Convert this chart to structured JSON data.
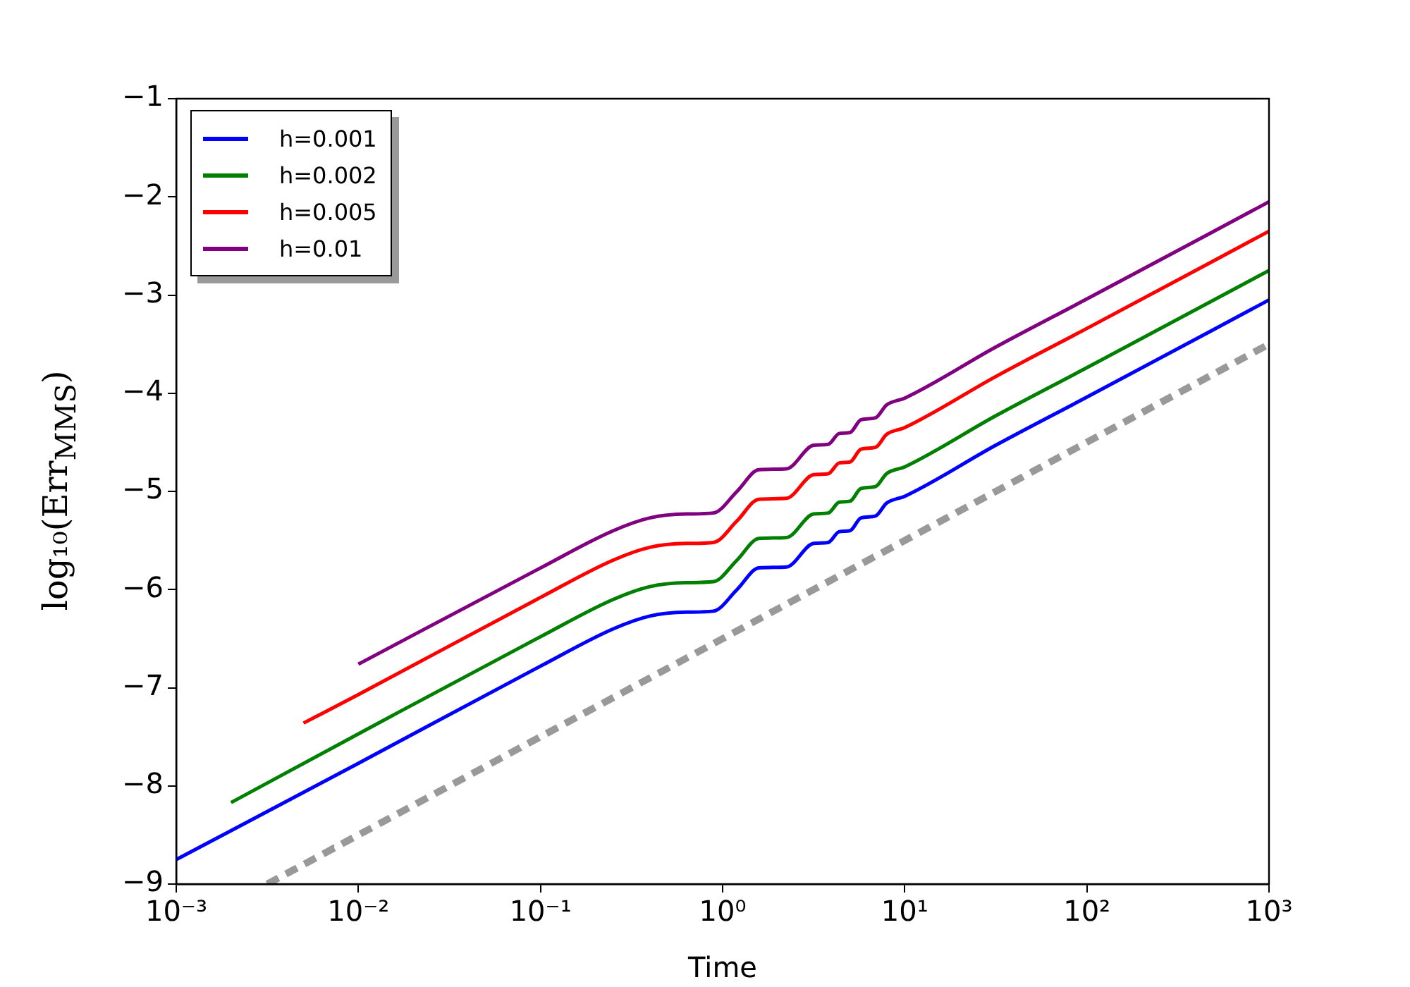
{
  "chart_data": {
    "type": "line",
    "xlabel": "Time",
    "ylabel": "log₁₀(Err$_{MMS}$)",
    "log": "x",
    "grid": false,
    "legend": "top left",
    "xlim": [
      0.001,
      1000
    ],
    "ylim": [
      -9,
      -1
    ],
    "xticks": [
      {
        "value": 0.001,
        "label": "10⁻³"
      },
      {
        "value": 0.01,
        "label": "10⁻²"
      },
      {
        "value": 0.1,
        "label": "10⁻¹"
      },
      {
        "value": 1,
        "label": "10⁰"
      },
      {
        "value": 10,
        "label": "10¹"
      },
      {
        "value": 100,
        "label": "10²"
      },
      {
        "value": 1000,
        "label": "10³"
      }
    ],
    "yticks": [
      {
        "value": -9,
        "label": "−9"
      },
      {
        "value": -8,
        "label": "−8"
      },
      {
        "value": -7,
        "label": "−7"
      },
      {
        "value": -6,
        "label": "−6"
      },
      {
        "value": -5,
        "label": "−5"
      },
      {
        "value": -4,
        "label": "−4"
      },
      {
        "value": -3,
        "label": "−3"
      },
      {
        "value": -2,
        "label": "−2"
      },
      {
        "value": -1,
        "label": "−1"
      }
    ],
    "series": [
      {
        "name": "h=0.001",
        "color": "#0000ff",
        "x": [
          0.001,
          0.01,
          0.1,
          0.251,
          0.398,
          0.631,
          0.891,
          1.2,
          1.58,
          2.24,
          3.16,
          3.8,
          4.37,
          5.01,
          5.75,
          6.92,
          7.94,
          10,
          31.6,
          100,
          1000
        ],
        "values": [
          -8.75,
          -7.77,
          -6.78,
          -6.4,
          -6.27,
          -6.23,
          -6.22,
          -6.0,
          -5.78,
          -5.77,
          -5.53,
          -5.52,
          -5.41,
          -5.4,
          -5.27,
          -5.25,
          -5.12,
          -5.05,
          -4.53,
          -4.04,
          -3.05
        ]
      },
      {
        "name": "h=0.002",
        "color": "#008000",
        "x": [
          0.002,
          0.01,
          0.1,
          0.251,
          0.398,
          0.631,
          0.891,
          1.2,
          1.58,
          2.24,
          3.16,
          3.8,
          4.37,
          5.01,
          5.75,
          6.92,
          7.94,
          10,
          31.6,
          100,
          1000
        ],
        "values": [
          -8.17,
          -7.47,
          -6.48,
          -6.1,
          -5.97,
          -5.93,
          -5.92,
          -5.7,
          -5.48,
          -5.47,
          -5.23,
          -5.22,
          -5.11,
          -5.1,
          -4.97,
          -4.95,
          -4.82,
          -4.75,
          -4.23,
          -3.74,
          -2.75
        ]
      },
      {
        "name": "h=0.005",
        "color": "#ff0000",
        "x": [
          0.005,
          0.01,
          0.1,
          0.251,
          0.398,
          0.631,
          0.891,
          1.2,
          1.58,
          2.24,
          3.16,
          3.8,
          4.37,
          5.01,
          5.75,
          6.92,
          7.94,
          10,
          31.6,
          100,
          1000
        ],
        "values": [
          -7.36,
          -7.07,
          -6.08,
          -5.7,
          -5.57,
          -5.53,
          -5.52,
          -5.3,
          -5.08,
          -5.07,
          -4.83,
          -4.82,
          -4.71,
          -4.7,
          -4.57,
          -4.55,
          -4.42,
          -4.35,
          -3.83,
          -3.34,
          -2.35
        ]
      },
      {
        "name": "h=0.01",
        "color": "#800080",
        "x": [
          0.01,
          0.1,
          0.251,
          0.398,
          0.631,
          0.891,
          1.2,
          1.58,
          2.24,
          3.16,
          3.8,
          4.37,
          5.01,
          5.75,
          6.92,
          7.94,
          10,
          31.6,
          100,
          1000
        ],
        "values": [
          -6.76,
          -5.78,
          -5.4,
          -5.27,
          -5.23,
          -5.22,
          -5.0,
          -4.78,
          -4.77,
          -4.53,
          -4.52,
          -4.41,
          -4.4,
          -4.27,
          -4.25,
          -4.12,
          -4.05,
          -3.53,
          -3.04,
          -2.05
        ]
      },
      {
        "color": "#999999",
        "line_style": "dashed",
        "x": [
          0.00316,
          1000
        ],
        "values": [
          -9,
          -3.5
        ]
      }
    ]
  }
}
